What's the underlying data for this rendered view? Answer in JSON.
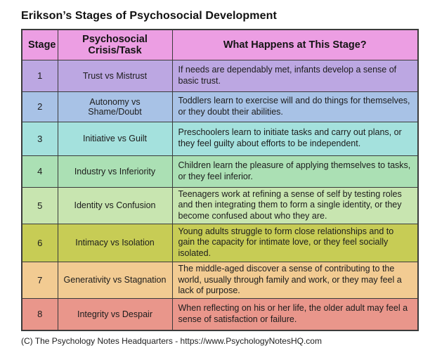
{
  "title": "Erikson’s Stages of Psychosocial Development",
  "footer": "(C) The Psychology Notes Headquarters - https://www.PsychologyNotesHQ.com",
  "colors": {
    "border": "#3b3b3b",
    "header_row": "#ec9ee3",
    "text": "#1c1c1c"
  },
  "table": {
    "headers": [
      "Stage",
      "Psychosocial Crisis/Task",
      "What Happens at This Stage?"
    ],
    "header_color": "#ec9ee3",
    "rows": [
      {
        "stage": "1",
        "crisis": "Trust vs Mistrust",
        "description": "If needs are dependably met, infants develop a sense of basic trust.",
        "color": "#bca7e2"
      },
      {
        "stage": "2",
        "crisis": "Autonomy vs Shame/Doubt",
        "description": "Toddlers learn to exercise will and do things for themselves, or they doubt their abilities.",
        "color": "#a8c2e6"
      },
      {
        "stage": "3",
        "crisis": "Initiative vs Guilt",
        "description": "Preschoolers learn to initiate tasks and carry out plans, or they feel guilty about efforts to be independent.",
        "color": "#a4e1dd"
      },
      {
        "stage": "4",
        "crisis": "Industry vs Inferiority",
        "description": "Children learn the pleasure of applying themselves to tasks, or they feel inferior.",
        "color": "#abe0b4"
      },
      {
        "stage": "5",
        "crisis": "Identity vs Confusion",
        "description": "Teenagers work at refining a sense of self by testing roles and then integrating them to form a single identity, or they become confused about who they are.",
        "color": "#c8e5b0"
      },
      {
        "stage": "6",
        "crisis": "Intimacy vs Isolation",
        "description": "Young adults struggle to form close relationships and to gain the capacity for intimate love, or they feel socially isolated.",
        "color": "#c7cc55"
      },
      {
        "stage": "7",
        "crisis": "Generativity vs Stagnation",
        "description": "The middle-aged discover a sense of contributing to the world, usually through family and work, or they may feel a lack of purpose.",
        "color": "#f2cb92"
      },
      {
        "stage": "8",
        "crisis": "Integrity vs Despair",
        "description": "When reflecting on his or her life, the older adult may feel a sense of satisfaction or failure.",
        "color": "#e9968b"
      }
    ]
  }
}
